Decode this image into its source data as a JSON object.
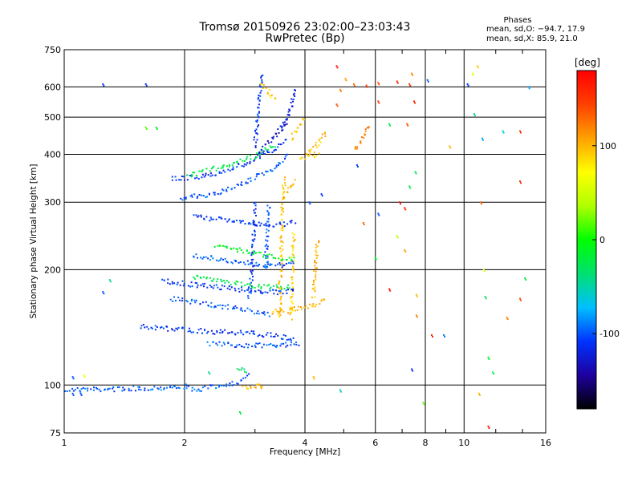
{
  "title": {
    "line1": "Tromsø 20150926 23:02:00–23:03:43",
    "line2": "RwPretec (Bp)"
  },
  "phases": {
    "title": "Phases",
    "mean_o": "mean, sd,O: −94.7, 17.9",
    "mean_x": "mean, sd,X:  85.9, 21.0"
  },
  "colorbar": {
    "unit": "[deg]",
    "ticks": [
      100,
      0,
      -100
    ],
    "range": [
      -180,
      180
    ],
    "stops": [
      "#000000",
      "#1e00a0",
      "#0033ff",
      "#00c0ff",
      "#00e070",
      "#00ff00",
      "#b0ff00",
      "#ffff00",
      "#ffa000",
      "#ff4000",
      "#ff0000"
    ]
  },
  "chart_data": {
    "type": "scatter",
    "title": "Tromsø 20150926 23:02:00–23:03:43",
    "subtitle": "RwPretec (Bp)",
    "xlabel": "Frequency [MHz]",
    "ylabel": "Stationary phase Virtual Height [km]",
    "x_scale": "log",
    "y_scale": "log",
    "xlim": [
      1,
      16
    ],
    "ylim": [
      75,
      750
    ],
    "x_ticks": [
      1,
      2,
      4,
      6,
      8,
      10,
      16
    ],
    "y_ticks": [
      75,
      100,
      200,
      300,
      400,
      500,
      600,
      750
    ],
    "grid": true,
    "color_dimension": "phase [deg]",
    "traces": [
      {
        "x": [
          1.0,
          1.6
        ],
        "y": [
          97,
          98
        ],
        "phase": -100
      },
      {
        "x": [
          1.6,
          2.0,
          2.15,
          2.5
        ],
        "y": [
          98,
          99,
          97,
          100
        ],
        "phase": -95
      },
      {
        "x": [
          2.5,
          2.75,
          2.9
        ],
        "y": [
          100,
          102,
          106
        ],
        "phase": -105
      },
      {
        "x": [
          2.8,
          3.0,
          3.15
        ],
        "y": [
          98,
          99,
          100
        ],
        "phase": 100
      },
      {
        "x": [
          1.85,
          2.3,
          2.85,
          3.3,
          3.6
        ],
        "y": [
          345,
          352,
          378,
          408,
          440
        ],
        "phase": -110
      },
      {
        "x": [
          1.95,
          2.35,
          2.85,
          3.35,
          3.65
        ],
        "y": [
          308,
          314,
          338,
          368,
          400
        ],
        "phase": -100
      },
      {
        "x": [
          2.05,
          2.45,
          2.95,
          3.4
        ],
        "y": [
          352,
          370,
          392,
          425
        ],
        "phase": -20
      },
      {
        "x": [
          3.05,
          3.25,
          3.45,
          3.65
        ],
        "y": [
          400,
          430,
          460,
          495
        ],
        "phase": -130
      },
      {
        "x": [
          3.0,
          3.05,
          3.1,
          3.12
        ],
        "y": [
          420,
          500,
          600,
          650
        ],
        "phase": -110
      },
      {
        "x": [
          3.5,
          3.62,
          3.7,
          3.78
        ],
        "y": [
          470,
          500,
          540,
          600
        ],
        "phase": -120
      },
      {
        "x": [
          3.7,
          3.85,
          4.0
        ],
        "y": [
          440,
          470,
          500
        ],
        "phase": 100
      },
      {
        "x": [
          4.0,
          4.35,
          4.55
        ],
        "y": [
          400,
          430,
          460
        ],
        "phase": 95
      },
      {
        "x": [
          5.3,
          5.6,
          5.8
        ],
        "y": [
          410,
          440,
          480
        ],
        "phase": 120
      },
      {
        "x": [
          2.9,
          2.95,
          2.98,
          3.0
        ],
        "y": [
          170,
          200,
          250,
          300
        ],
        "phase": -110
      },
      {
        "x": [
          3.2,
          3.22,
          3.25
        ],
        "y": [
          200,
          250,
          300
        ],
        "phase": -100
      },
      {
        "x": [
          3.45,
          3.48,
          3.5,
          3.52,
          3.55
        ],
        "y": [
          150,
          200,
          250,
          300,
          350
        ],
        "phase": 95
      },
      {
        "x": [
          3.7,
          3.72,
          3.75
        ],
        "y": [
          150,
          200,
          250
        ],
        "phase": 90
      },
      {
        "x": [
          4.2,
          4.25,
          4.3
        ],
        "y": [
          170,
          200,
          240
        ],
        "phase": 100
      },
      {
        "x": [
          2.1,
          2.5,
          3.0,
          3.5,
          3.8
        ],
        "y": [
          275,
          270,
          262,
          262,
          268
        ],
        "phase": -110
      },
      {
        "x": [
          2.1,
          2.5,
          3.0,
          3.5,
          3.8
        ],
        "y": [
          218,
          212,
          207,
          205,
          210
        ],
        "phase": -100
      },
      {
        "x": [
          2.4,
          2.9,
          3.4,
          3.8
        ],
        "y": [
          232,
          222,
          215,
          212
        ],
        "phase": -10
      },
      {
        "x": [
          1.75,
          2.05,
          2.45,
          2.95,
          3.5,
          3.8
        ],
        "y": [
          187,
          183,
          180,
          176,
          174,
          178
        ],
        "phase": -110
      },
      {
        "x": [
          1.85,
          2.25,
          2.75,
          3.3
        ],
        "y": [
          168,
          163,
          158,
          152
        ],
        "phase": -100
      },
      {
        "x": [
          2.1,
          2.6,
          3.1,
          3.7
        ],
        "y": [
          192,
          185,
          180,
          180
        ],
        "phase": -25
      },
      {
        "x": [
          1.55,
          1.85,
          2.25,
          2.75,
          3.3,
          3.8
        ],
        "y": [
          142,
          140,
          138,
          137,
          135,
          132
        ],
        "phase": -110
      },
      {
        "x": [
          3.3,
          3.75,
          4.3,
          4.55
        ],
        "y": [
          155,
          157,
          163,
          167
        ],
        "phase": 100
      },
      {
        "x": [
          2.3,
          2.8,
          3.4,
          3.9
        ],
        "y": [
          128,
          127,
          127,
          128
        ],
        "phase": -100
      },
      {
        "x": [
          2.7,
          2.9
        ],
        "y": [
          110,
          108
        ],
        "phase": -30
      },
      {
        "x": [
          3.6,
          3.7,
          3.8
        ],
        "y": [
          320,
          330,
          345
        ],
        "phase": 100
      },
      {
        "x": [
          3.1,
          3.3,
          3.4
        ],
        "y": [
          610,
          570,
          550
        ],
        "phase": 90
      },
      {
        "x": [
          3.9,
          4.2,
          4.35
        ],
        "y": [
          390,
          398,
          405
        ],
        "phase": 95
      }
    ],
    "points": [
      {
        "x": 1.25,
        "y": 610,
        "phase": -110
      },
      {
        "x": 1.6,
        "y": 610,
        "phase": -110
      },
      {
        "x": 1.7,
        "y": 470,
        "phase": -20
      },
      {
        "x": 1.3,
        "y": 188,
        "phase": -40
      },
      {
        "x": 1.25,
        "y": 175,
        "phase": -100
      },
      {
        "x": 1.12,
        "y": 106,
        "phase": 70
      },
      {
        "x": 1.05,
        "y": 105,
        "phase": -100
      },
      {
        "x": 1.05,
        "y": 95,
        "phase": -100
      },
      {
        "x": 1.1,
        "y": 95,
        "phase": -100
      },
      {
        "x": 1.6,
        "y": 470,
        "phase": 20
      },
      {
        "x": 2.75,
        "y": 85,
        "phase": -25
      },
      {
        "x": 3.1,
        "y": 99,
        "phase": 100
      },
      {
        "x": 4.8,
        "y": 680,
        "phase": 170
      },
      {
        "x": 5.05,
        "y": 630,
        "phase": 110
      },
      {
        "x": 5.3,
        "y": 610,
        "phase": 130
      },
      {
        "x": 5.7,
        "y": 605,
        "phase": 150
      },
      {
        "x": 6.1,
        "y": 615,
        "phase": 140
      },
      {
        "x": 6.8,
        "y": 620,
        "phase": 160
      },
      {
        "x": 7.3,
        "y": 610,
        "phase": 150
      },
      {
        "x": 7.4,
        "y": 650,
        "phase": 120
      },
      {
        "x": 8.1,
        "y": 625,
        "phase": -100
      },
      {
        "x": 10.2,
        "y": 610,
        "phase": -110
      },
      {
        "x": 10.5,
        "y": 650,
        "phase": 60
      },
      {
        "x": 10.8,
        "y": 680,
        "phase": 90
      },
      {
        "x": 14.5,
        "y": 600,
        "phase": -80
      },
      {
        "x": 6.1,
        "y": 550,
        "phase": 150
      },
      {
        "x": 7.5,
        "y": 550,
        "phase": 160
      },
      {
        "x": 7.2,
        "y": 480,
        "phase": 140
      },
      {
        "x": 6.5,
        "y": 480,
        "phase": -20
      },
      {
        "x": 7.1,
        "y": 290,
        "phase": 160
      },
      {
        "x": 6.9,
        "y": 300,
        "phase": 170
      },
      {
        "x": 6.1,
        "y": 280,
        "phase": -100
      },
      {
        "x": 7.3,
        "y": 330,
        "phase": -20
      },
      {
        "x": 7.55,
        "y": 360,
        "phase": -30
      },
      {
        "x": 9.2,
        "y": 420,
        "phase": 100
      },
      {
        "x": 10.6,
        "y": 510,
        "phase": -40
      },
      {
        "x": 11.1,
        "y": 440,
        "phase": -80
      },
      {
        "x": 12.5,
        "y": 460,
        "phase": -60
      },
      {
        "x": 13.8,
        "y": 460,
        "phase": 150
      },
      {
        "x": 13.8,
        "y": 340,
        "phase": 160
      },
      {
        "x": 11.0,
        "y": 300,
        "phase": 130
      },
      {
        "x": 5.6,
        "y": 265,
        "phase": 130
      },
      {
        "x": 6.8,
        "y": 245,
        "phase": 40
      },
      {
        "x": 7.1,
        "y": 225,
        "phase": 110
      },
      {
        "x": 6.0,
        "y": 215,
        "phase": -10
      },
      {
        "x": 11.2,
        "y": 200,
        "phase": 60
      },
      {
        "x": 14.2,
        "y": 190,
        "phase": -20
      },
      {
        "x": 6.5,
        "y": 178,
        "phase": 170
      },
      {
        "x": 7.6,
        "y": 172,
        "phase": 100
      },
      {
        "x": 7.6,
        "y": 152,
        "phase": 120
      },
      {
        "x": 8.3,
        "y": 135,
        "phase": 160
      },
      {
        "x": 8.9,
        "y": 135,
        "phase": -90
      },
      {
        "x": 7.4,
        "y": 110,
        "phase": -110
      },
      {
        "x": 11.5,
        "y": 118,
        "phase": -10
      },
      {
        "x": 11.8,
        "y": 108,
        "phase": -20
      },
      {
        "x": 12.8,
        "y": 150,
        "phase": 120
      },
      {
        "x": 11.3,
        "y": 170,
        "phase": -30
      },
      {
        "x": 13.8,
        "y": 168,
        "phase": 140
      },
      {
        "x": 10.9,
        "y": 95,
        "phase": 100
      },
      {
        "x": 11.5,
        "y": 78,
        "phase": 170
      },
      {
        "x": 7.9,
        "y": 90,
        "phase": 20
      },
      {
        "x": 4.9,
        "y": 97,
        "phase": -60
      },
      {
        "x": 2.3,
        "y": 108,
        "phase": -40
      },
      {
        "x": 4.2,
        "y": 105,
        "phase": 100
      },
      {
        "x": 4.8,
        "y": 540,
        "phase": 140
      },
      {
        "x": 4.9,
        "y": 590,
        "phase": 120
      },
      {
        "x": 5.4,
        "y": 375,
        "phase": -110
      },
      {
        "x": 4.1,
        "y": 300,
        "phase": -100
      },
      {
        "x": 4.4,
        "y": 315,
        "phase": -110
      }
    ]
  }
}
